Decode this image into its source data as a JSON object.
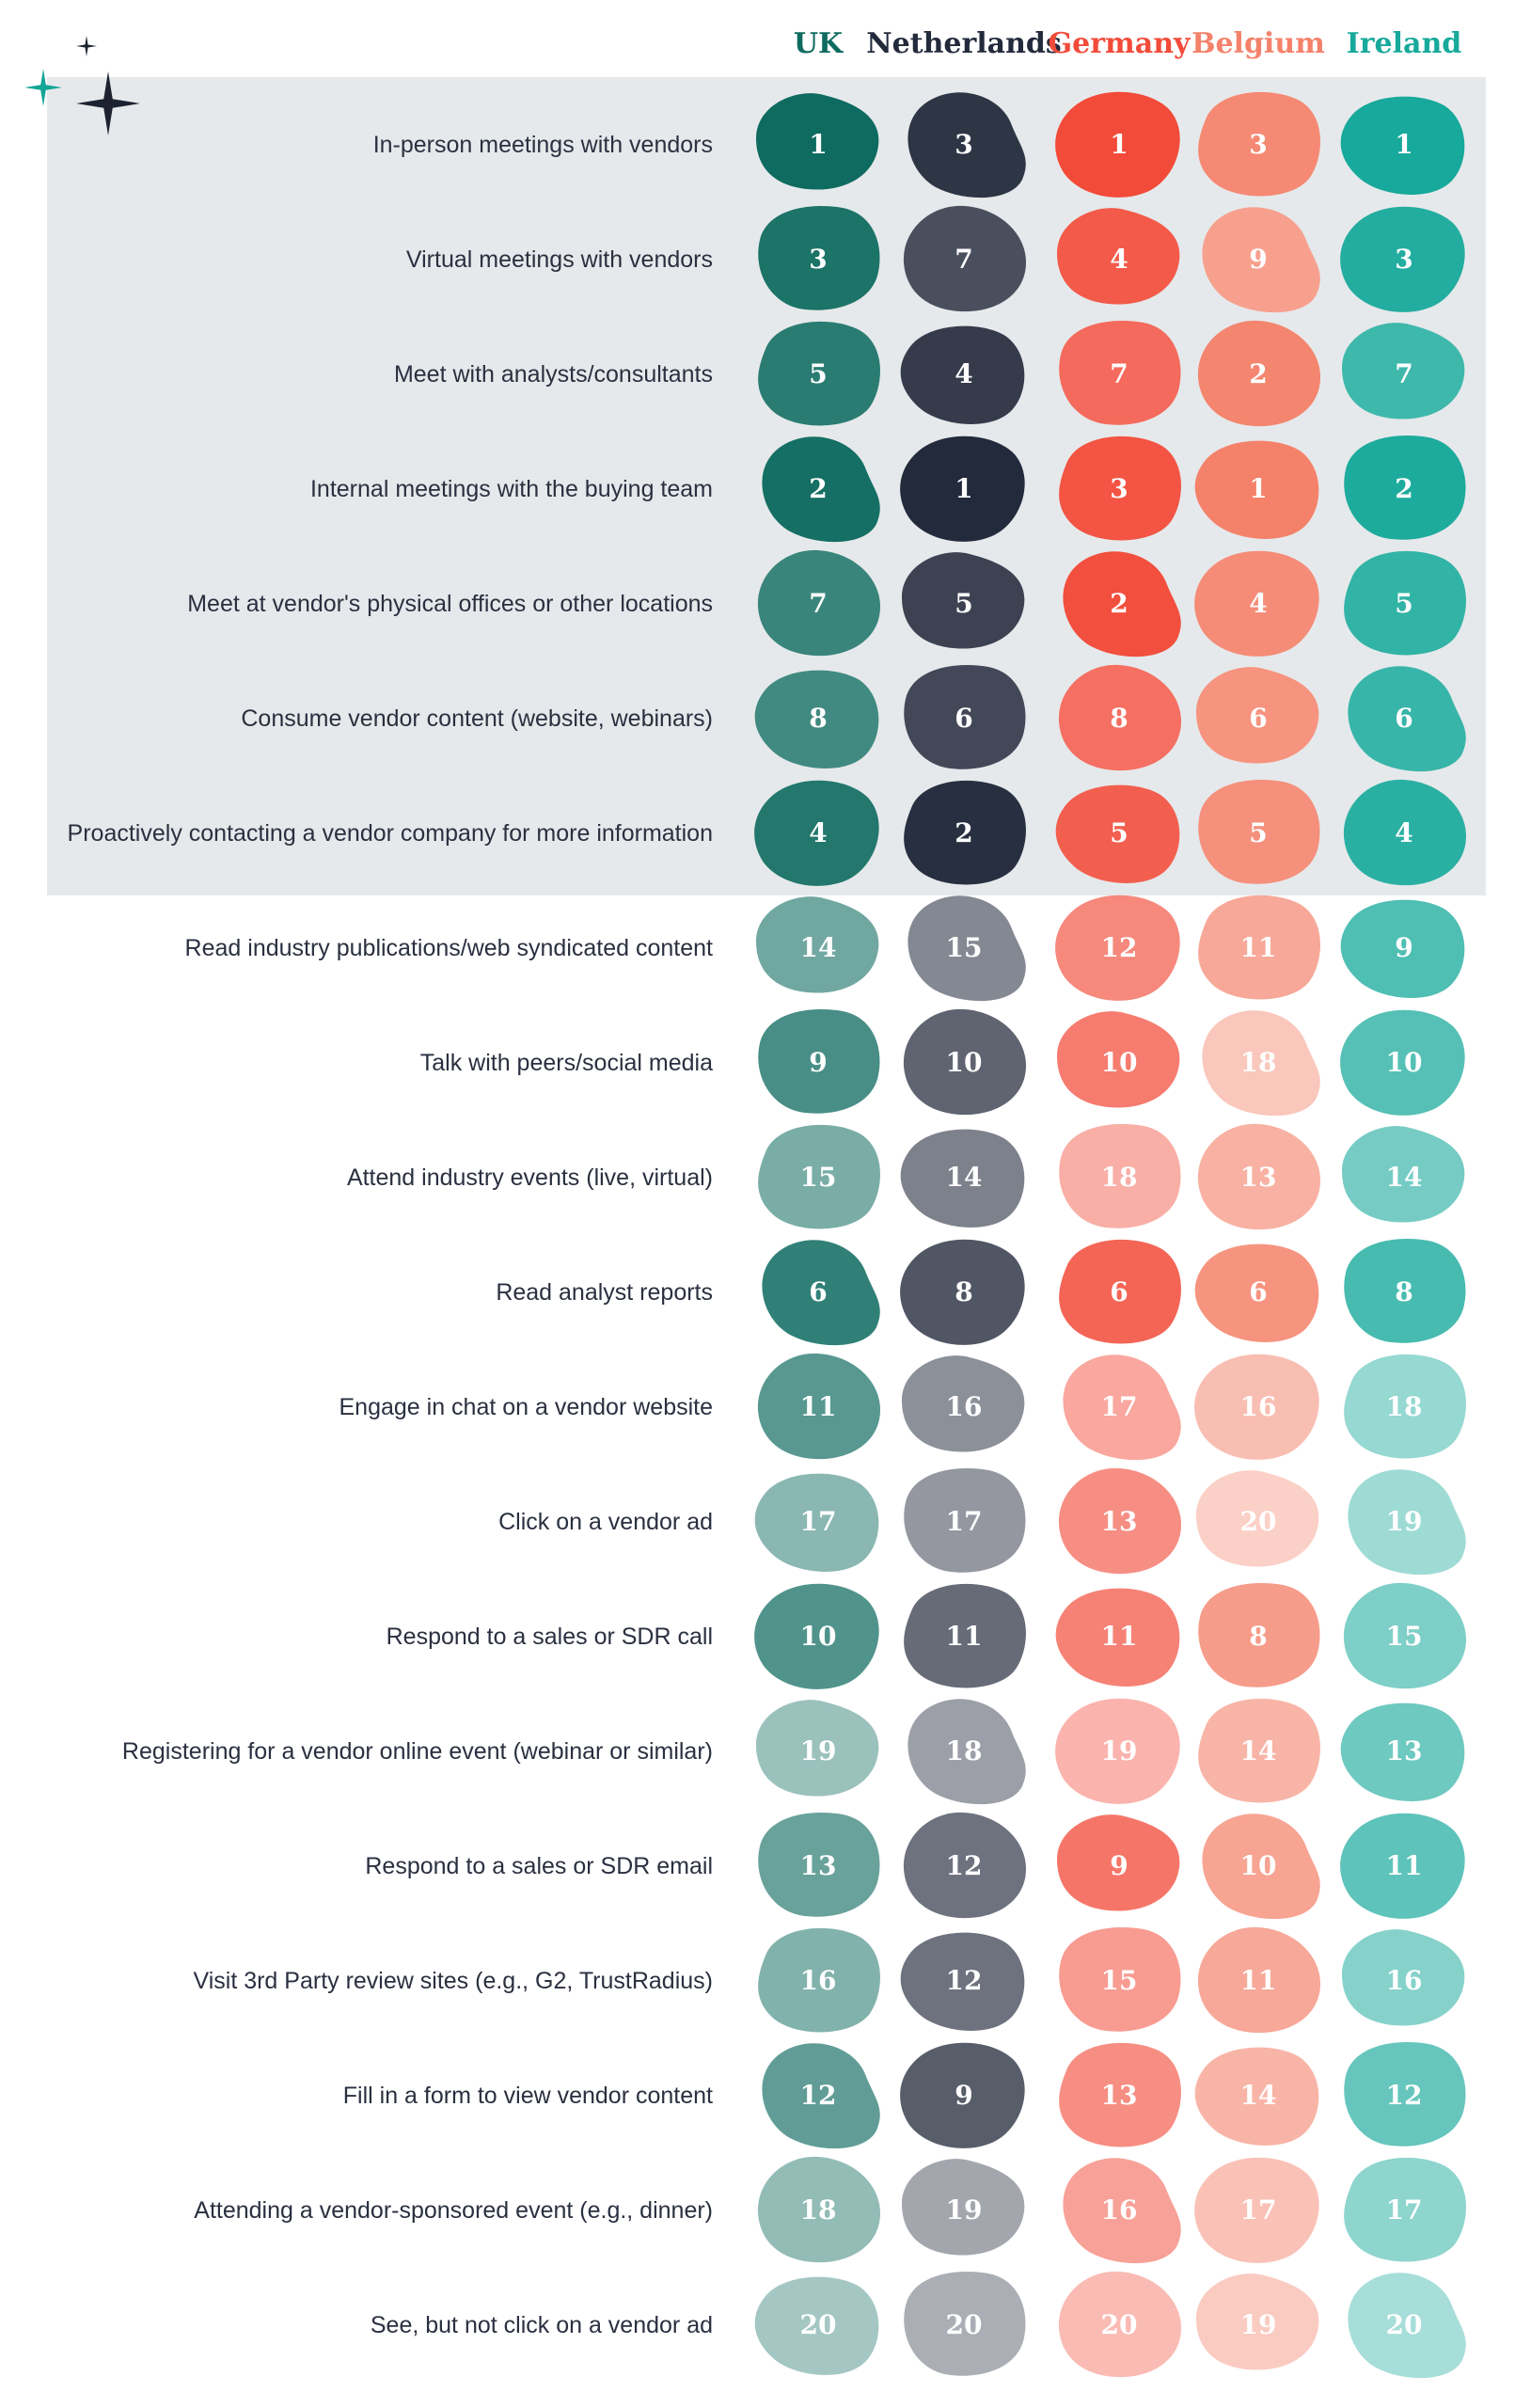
{
  "chart_data": {
    "type": "table",
    "title": "",
    "columns": [
      {
        "name": "UK",
        "color": "#0f6b60"
      },
      {
        "name": "Netherlands",
        "color": "#232a3b"
      },
      {
        "name": "Germany",
        "color": "#f24b39"
      },
      {
        "name": "Belgium",
        "color": "#f4826b"
      },
      {
        "name": "Ireland",
        "color": "#17a99b"
      }
    ],
    "highlight_group_rows": 7,
    "highlight_color": "#e6e9eb",
    "max_rank": 20,
    "rows": [
      {
        "label": "In-person meetings with vendors",
        "values": [
          1,
          3,
          1,
          3,
          1
        ]
      },
      {
        "label": "Virtual meetings with vendors",
        "values": [
          3,
          7,
          4,
          9,
          3
        ]
      },
      {
        "label": "Meet with analysts/consultants",
        "values": [
          5,
          4,
          7,
          2,
          7
        ]
      },
      {
        "label": "Internal meetings with the buying team",
        "values": [
          2,
          1,
          3,
          1,
          2
        ]
      },
      {
        "label": "Meet at vendor's physical offices or other locations",
        "values": [
          7,
          5,
          2,
          4,
          5
        ]
      },
      {
        "label": "Consume vendor content (website, webinars)",
        "values": [
          8,
          6,
          8,
          6,
          6
        ]
      },
      {
        "label": "Proactively contacting a vendor company for more information",
        "values": [
          4,
          2,
          5,
          5,
          4
        ]
      },
      {
        "label": "Read industry publications/web syndicated content",
        "values": [
          14,
          15,
          12,
          11,
          9
        ]
      },
      {
        "label": "Talk with peers/social media",
        "values": [
          9,
          10,
          10,
          18,
          10
        ]
      },
      {
        "label": "Attend industry events (live, virtual)",
        "values": [
          15,
          14,
          18,
          13,
          14
        ]
      },
      {
        "label": "Read analyst reports",
        "values": [
          6,
          8,
          6,
          6,
          8
        ]
      },
      {
        "label": "Engage in chat on a vendor website",
        "values": [
          11,
          16,
          17,
          16,
          18
        ]
      },
      {
        "label": "Click on a vendor ad",
        "values": [
          17,
          17,
          13,
          20,
          19
        ]
      },
      {
        "label": "Respond to a sales or SDR call",
        "values": [
          10,
          11,
          11,
          8,
          15
        ]
      },
      {
        "label": "Registering for a vendor online event (webinar or similar)",
        "values": [
          19,
          18,
          19,
          14,
          13
        ]
      },
      {
        "label": "Respond to a sales or SDR email",
        "values": [
          13,
          12,
          9,
          10,
          11
        ]
      },
      {
        "label": "Visit 3rd Party review sites (e.g., G2, TrustRadius)",
        "values": [
          16,
          12,
          15,
          11,
          16
        ]
      },
      {
        "label": "Fill in a form to view vendor content",
        "values": [
          12,
          9,
          13,
          14,
          12
        ]
      },
      {
        "label": "Attending a vendor-sponsored event (e.g., dinner)",
        "values": [
          18,
          19,
          16,
          17,
          17
        ]
      },
      {
        "label": "See, but not click on a vendor ad",
        "values": [
          20,
          20,
          20,
          19,
          20
        ]
      }
    ],
    "decoration": {
      "star_icons": [
        "sparkle-teal-icon",
        "sparkle-small-icon",
        "sparkle-large-icon"
      ],
      "star_colors": [
        "#15a596",
        "#1c2230"
      ]
    }
  }
}
